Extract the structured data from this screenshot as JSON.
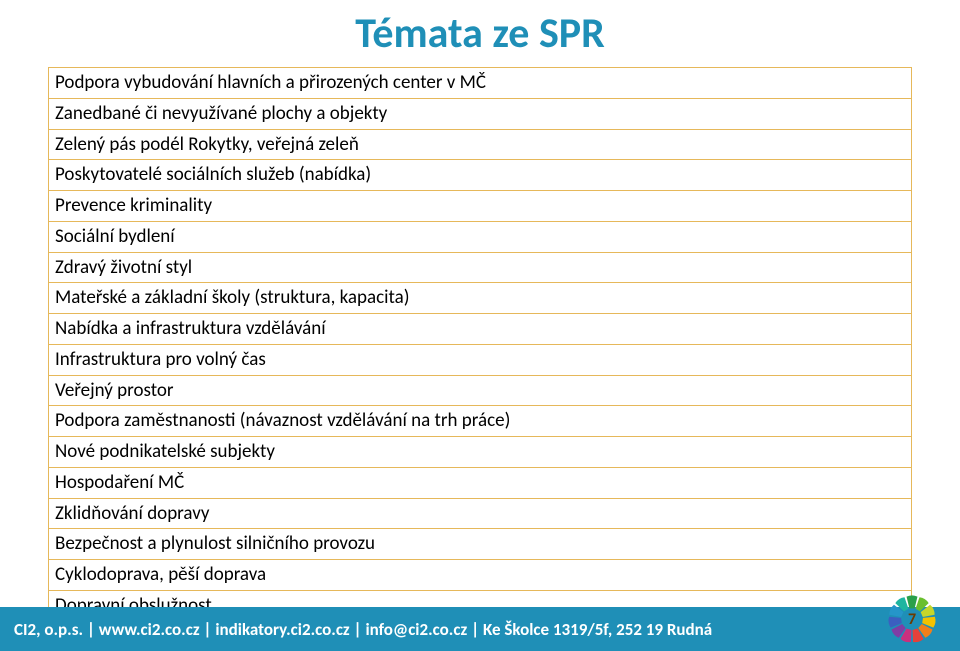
{
  "title": "Témata ze SPR",
  "topics": [
    "Podpora vybudování hlavních a přirozených center v MČ",
    "Zanedbané či nevyužívané plochy a objekty",
    "Zelený pás podél Rokytky, veřejná zeleň",
    "Poskytovatelé sociálních služeb (nabídka)",
    "Prevence kriminality",
    "Sociální bydlení",
    "Zdravý životní styl",
    "Mateřské a základní školy (struktura, kapacita)",
    "Nabídka a infrastruktura vzdělávání",
    "Infrastruktura pro volný čas",
    "Veřejný prostor",
    "Podpora zaměstnanosti (návaznost vzdělávání na trh práce)",
    "Nové podnikatelské subjekty",
    "Hospodaření MČ",
    "Zklidňování dopravy",
    "Bezpečnost a plynulost silničního provozu",
    "Cyklodoprava, pěší doprava",
    "Dopravní obslužnost"
  ],
  "footer_text": "CI2, o.p.s. | www.ci2.co.cz | indikatory.ci2.co.cz | info@ci2.co.cz | Ke Školce 1319/5f, 252 19 Rudná",
  "page_number": "7",
  "colors": {
    "title": "#1f8fb7",
    "table_border": "#e6b85a",
    "footer_bg": "#1f8fb7",
    "footer_text": "#ffffff",
    "page_num": "#6b3a00"
  },
  "badge_petals": [
    "#2aa04a",
    "#6abf2e",
    "#c6d62b",
    "#f2c200",
    "#f07f1a",
    "#e4413b",
    "#c9307e",
    "#7e3da5",
    "#3b5fc0",
    "#2596c9",
    "#1fb5a0"
  ]
}
